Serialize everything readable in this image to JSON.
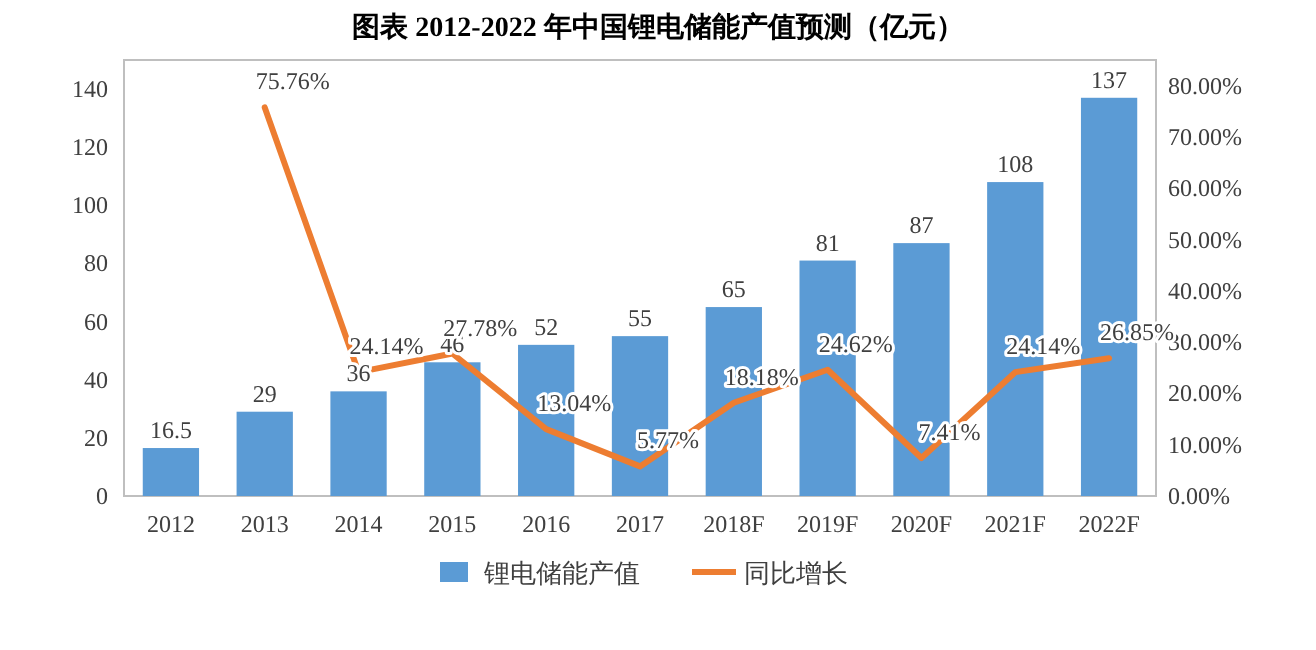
{
  "chart_data": {
    "type": "bar",
    "title": "图表  2012-2022 年中国锂电储能产值预测（亿元）",
    "categories": [
      "2012",
      "2013",
      "2014",
      "2015",
      "2016",
      "2017",
      "2018F",
      "2019F",
      "2020F",
      "2021F",
      "2022F"
    ],
    "series": [
      {
        "name": "锂电储能产值",
        "color": "#5b9bd5",
        "values": [
          16.5,
          29,
          36,
          46,
          52,
          55,
          65,
          81,
          87,
          108,
          137
        ]
      },
      {
        "name": "同比增长",
        "type": "line",
        "axis": "y2",
        "color": "#ed7d31",
        "values": [
          null,
          75.76,
          24.14,
          27.78,
          13.04,
          5.77,
          18.18,
          24.62,
          7.41,
          24.14,
          26.85
        ],
        "value_labels": [
          null,
          "75.76%",
          "24.14%",
          "27.78%",
          "13.04%",
          "5.77%",
          "18.18%",
          "24.62%",
          "7.41%",
          "24.14%",
          "26.85%"
        ]
      }
    ],
    "data_labels": true,
    "ylim": [
      0,
      150
    ],
    "yticks": [
      0,
      20,
      40,
      60,
      80,
      100,
      120,
      140
    ],
    "y2lim": [
      0,
      85
    ],
    "y2ticks": [
      {
        "value": 0,
        "label": "0.00%"
      },
      {
        "value": 10,
        "label": "10.00%"
      },
      {
        "value": 20,
        "label": "20.00%"
      },
      {
        "value": 30,
        "label": "30.00%"
      },
      {
        "value": 40,
        "label": "40.00%"
      },
      {
        "value": 50,
        "label": "50.00%"
      },
      {
        "value": 60,
        "label": "60.00%"
      },
      {
        "value": 70,
        "label": "70.00%"
      },
      {
        "value": 80,
        "label": "80.00%"
      }
    ],
    "legend": "bottom",
    "grid": false
  }
}
